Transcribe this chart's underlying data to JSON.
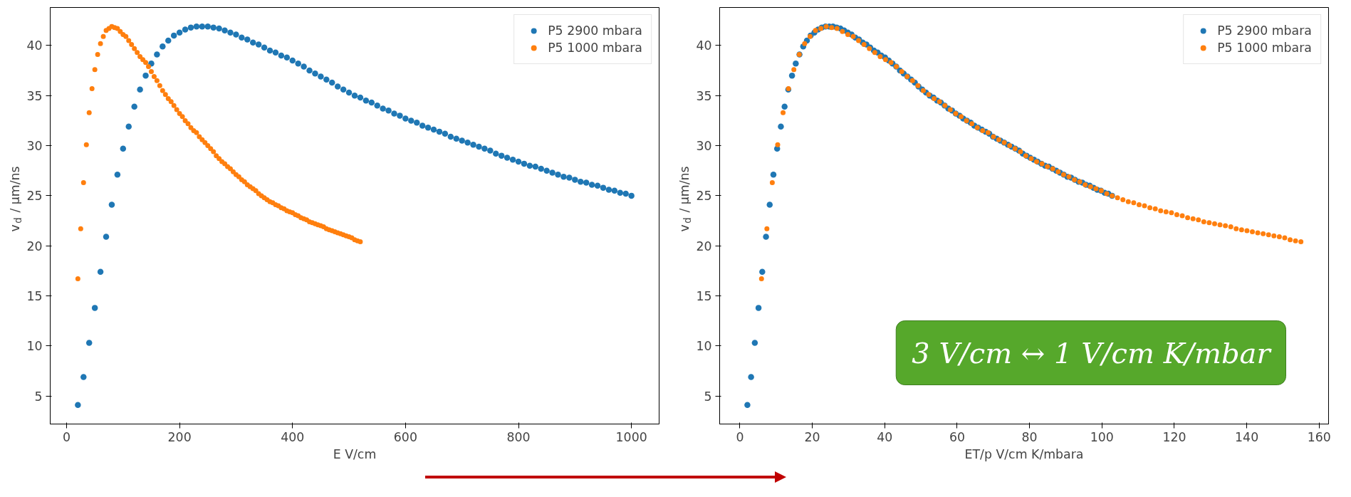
{
  "chart_data": [
    {
      "type": "scatter",
      "xlabel": "E V/cm",
      "ylabel": "v$_{d}$ / µm/ns",
      "xlim": [
        -29,
        1049
      ],
      "ylim": [
        2.2,
        43.8
      ],
      "xticks": [
        0,
        200,
        400,
        600,
        800,
        1000
      ],
      "yticks": [
        5,
        10,
        15,
        20,
        25,
        30,
        35,
        40
      ],
      "legend": "top right",
      "marker": "circle",
      "series": [
        {
          "name": "P5 2900 mbara",
          "color": "#1f77b4",
          "x": [
            20,
            30,
            40,
            50,
            60,
            70,
            80,
            90,
            100,
            110,
            120,
            130,
            140,
            150,
            160,
            170,
            180,
            190,
            200,
            210,
            220,
            230,
            240,
            250,
            260,
            270,
            280,
            290,
            300,
            310,
            320,
            330,
            340,
            350,
            360,
            370,
            380,
            390,
            400,
            410,
            420,
            430,
            440,
            450,
            460,
            470,
            480,
            490,
            500,
            510,
            520,
            530,
            540,
            550,
            560,
            570,
            580,
            590,
            600,
            610,
            620,
            630,
            640,
            650,
            660,
            670,
            680,
            690,
            700,
            710,
            720,
            730,
            740,
            750,
            760,
            770,
            780,
            790,
            800,
            810,
            820,
            830,
            840,
            850,
            860,
            870,
            880,
            890,
            900,
            910,
            920,
            930,
            940,
            950,
            960,
            970,
            980,
            990,
            1000
          ],
          "values": [
            4.1,
            6.9,
            10.3,
            13.8,
            17.4,
            20.9,
            24.1,
            27.1,
            29.7,
            31.9,
            33.9,
            35.6,
            37.0,
            38.2,
            39.1,
            39.9,
            40.5,
            41.0,
            41.3,
            41.6,
            41.8,
            41.9,
            41.9,
            41.9,
            41.8,
            41.7,
            41.5,
            41.3,
            41.1,
            40.8,
            40.6,
            40.3,
            40.1,
            39.8,
            39.5,
            39.3,
            39.0,
            38.8,
            38.5,
            38.2,
            37.9,
            37.5,
            37.2,
            36.9,
            36.6,
            36.3,
            35.9,
            35.6,
            35.3,
            35.0,
            34.8,
            34.5,
            34.3,
            34.0,
            33.7,
            33.5,
            33.2,
            33.0,
            32.7,
            32.5,
            32.3,
            32.0,
            31.8,
            31.6,
            31.4,
            31.2,
            30.9,
            30.7,
            30.5,
            30.3,
            30.1,
            29.9,
            29.7,
            29.5,
            29.2,
            29.0,
            28.8,
            28.6,
            28.4,
            28.2,
            28.0,
            27.9,
            27.7,
            27.5,
            27.3,
            27.1,
            26.9,
            26.8,
            26.6,
            26.4,
            26.3,
            26.1,
            26.0,
            25.8,
            25.6,
            25.5,
            25.3,
            25.2,
            25.0
          ]
        },
        {
          "name": "P5 1000 mbara",
          "color": "#ff7f0e",
          "x": [
            20,
            25,
            30,
            35,
            40,
            45,
            50,
            55,
            60,
            65,
            70,
            75,
            80,
            85,
            90,
            95,
            100,
            105,
            110,
            115,
            120,
            125,
            130,
            135,
            140,
            145,
            150,
            155,
            160,
            165,
            170,
            175,
            180,
            185,
            190,
            195,
            200,
            205,
            210,
            215,
            220,
            225,
            230,
            235,
            240,
            245,
            250,
            255,
            260,
            265,
            270,
            275,
            280,
            285,
            290,
            295,
            300,
            305,
            310,
            315,
            320,
            325,
            330,
            335,
            340,
            345,
            350,
            355,
            360,
            365,
            370,
            375,
            380,
            385,
            390,
            395,
            400,
            405,
            410,
            415,
            420,
            425,
            430,
            435,
            440,
            445,
            450,
            455,
            460,
            465,
            470,
            475,
            480,
            485,
            490,
            495,
            500,
            505,
            510,
            515,
            520
          ],
          "values": [
            16.7,
            21.7,
            26.3,
            30.1,
            33.3,
            35.7,
            37.6,
            39.1,
            40.2,
            40.9,
            41.5,
            41.7,
            41.9,
            41.8,
            41.7,
            41.4,
            41.1,
            40.9,
            40.5,
            40.1,
            39.7,
            39.3,
            38.9,
            38.6,
            38.3,
            37.9,
            37.4,
            36.9,
            36.5,
            36.0,
            35.5,
            35.1,
            34.7,
            34.4,
            34.0,
            33.6,
            33.2,
            32.9,
            32.5,
            32.2,
            31.8,
            31.5,
            31.3,
            30.9,
            30.6,
            30.3,
            30.0,
            29.7,
            29.4,
            29.0,
            28.7,
            28.4,
            28.2,
            27.9,
            27.7,
            27.4,
            27.1,
            26.9,
            26.6,
            26.4,
            26.1,
            25.9,
            25.7,
            25.5,
            25.2,
            25.0,
            24.8,
            24.6,
            24.4,
            24.3,
            24.1,
            24.0,
            23.8,
            23.7,
            23.5,
            23.4,
            23.3,
            23.1,
            23.0,
            22.8,
            22.7,
            22.6,
            22.4,
            22.3,
            22.2,
            22.1,
            22.0,
            21.9,
            21.7,
            21.6,
            21.5,
            21.4,
            21.3,
            21.2,
            21.1,
            21.0,
            20.9,
            20.8,
            20.6,
            20.5,
            20.4
          ]
        }
      ]
    },
    {
      "type": "scatter",
      "xlabel": "ET/p V/cm K/mbara",
      "ylabel": "v$_{d}$ / µm/ns",
      "xlim": [
        -5.6,
        162.6
      ],
      "ylim": [
        2.2,
        43.8
      ],
      "xticks": [
        0,
        20,
        40,
        60,
        80,
        100,
        120,
        140,
        160
      ],
      "yticks": [
        5,
        10,
        15,
        20,
        25,
        30,
        35,
        40
      ],
      "legend": "top right",
      "marker": "circle",
      "annotations": [
        "3 V/cm ↔ 1 V/cm K/mbar"
      ],
      "series": [
        {
          "name": "P5 2900 mbara",
          "color": "#1f77b4",
          "x": [
            2.06,
            3.08,
            4.11,
            5.14,
            6.17,
            7.2,
            8.22,
            9.25,
            10.28,
            11.31,
            12.34,
            13.36,
            14.39,
            15.42,
            16.45,
            17.48,
            18.5,
            19.53,
            20.56,
            21.59,
            22.62,
            23.64,
            24.67,
            25.7,
            26.73,
            27.76,
            28.78,
            29.81,
            30.84,
            31.87,
            32.9,
            33.92,
            34.95,
            35.98,
            37.01,
            38.04,
            39.06,
            40.09,
            41.12,
            42.15,
            43.18,
            44.2,
            45.23,
            46.26,
            47.29,
            48.32,
            49.34,
            50.37,
            51.4,
            52.43,
            53.46,
            54.48,
            55.51,
            56.54,
            57.57,
            58.6,
            59.62,
            60.65,
            61.68,
            62.71,
            63.74,
            64.76,
            65.79,
            66.82,
            67.85,
            68.88,
            69.9,
            70.93,
            71.96,
            72.99,
            74.02,
            75.04,
            76.07,
            77.1,
            78.13,
            79.16,
            80.18,
            81.21,
            82.24,
            83.27,
            84.3,
            85.32,
            86.35,
            87.38,
            88.41,
            89.44,
            90.46,
            91.49,
            92.52,
            93.55,
            94.58,
            95.6,
            96.63,
            97.66,
            98.69,
            99.72,
            100.74,
            101.77,
            102.8
          ],
          "values": [
            4.1,
            6.9,
            10.3,
            13.8,
            17.4,
            20.9,
            24.1,
            27.1,
            29.7,
            31.9,
            33.9,
            35.6,
            37.0,
            38.2,
            39.1,
            39.9,
            40.5,
            41.0,
            41.3,
            41.6,
            41.8,
            41.9,
            41.9,
            41.9,
            41.8,
            41.7,
            41.5,
            41.3,
            41.1,
            40.8,
            40.6,
            40.3,
            40.1,
            39.8,
            39.5,
            39.3,
            39.0,
            38.8,
            38.5,
            38.2,
            37.9,
            37.5,
            37.2,
            36.9,
            36.6,
            36.3,
            35.9,
            35.6,
            35.3,
            35.0,
            34.8,
            34.5,
            34.3,
            34.0,
            33.7,
            33.5,
            33.2,
            33.0,
            32.7,
            32.5,
            32.3,
            32.0,
            31.8,
            31.6,
            31.4,
            31.2,
            30.9,
            30.7,
            30.5,
            30.3,
            30.1,
            29.9,
            29.7,
            29.5,
            29.2,
            29.0,
            28.8,
            28.6,
            28.4,
            28.2,
            28.0,
            27.9,
            27.7,
            27.5,
            27.3,
            27.1,
            26.9,
            26.8,
            26.6,
            26.4,
            26.3,
            26.1,
            26.0,
            25.8,
            25.6,
            25.5,
            25.3,
            25.2,
            25.0
          ]
        },
        {
          "name": "P5 1000 mbara",
          "color": "#ff7f0e",
          "x": [
            5.96,
            7.45,
            8.94,
            10.43,
            11.92,
            13.41,
            14.9,
            16.39,
            17.88,
            19.37,
            20.86,
            22.35,
            23.84,
            25.33,
            26.82,
            28.31,
            29.8,
            31.29,
            32.78,
            34.27,
            35.76,
            37.25,
            38.74,
            40.23,
            41.72,
            43.21,
            44.7,
            46.19,
            47.68,
            49.17,
            50.66,
            52.15,
            53.64,
            55.13,
            56.62,
            58.11,
            59.6,
            61.09,
            62.58,
            64.07,
            65.56,
            67.05,
            68.54,
            70.03,
            71.52,
            73.01,
            74.5,
            75.99,
            77.48,
            78.97,
            80.46,
            81.95,
            83.44,
            84.93,
            86.42,
            87.91,
            89.4,
            90.89,
            92.38,
            93.87,
            95.36,
            96.85,
            98.34,
            99.83,
            101.32,
            102.81,
            104.3,
            105.79,
            107.28,
            108.77,
            110.26,
            111.75,
            113.24,
            114.73,
            116.22,
            117.71,
            119.2,
            120.69,
            122.18,
            123.67,
            125.16,
            126.65,
            128.14,
            129.63,
            131.12,
            132.61,
            134.1,
            135.59,
            137.08,
            138.57,
            140.06,
            141.55,
            143.04,
            144.53,
            146.02,
            147.51,
            149.0,
            150.49,
            151.98,
            153.47,
            154.96
          ],
          "values": [
            16.7,
            21.7,
            26.3,
            30.1,
            33.3,
            35.7,
            37.6,
            39.1,
            40.2,
            40.9,
            41.5,
            41.7,
            41.9,
            41.8,
            41.7,
            41.4,
            41.1,
            40.9,
            40.5,
            40.1,
            39.7,
            39.3,
            38.9,
            38.6,
            38.3,
            37.9,
            37.4,
            36.9,
            36.5,
            36.0,
            35.5,
            35.1,
            34.7,
            34.4,
            34.0,
            33.6,
            33.2,
            32.9,
            32.5,
            32.2,
            31.8,
            31.5,
            31.3,
            30.9,
            30.6,
            30.3,
            30.0,
            29.7,
            29.4,
            29.0,
            28.7,
            28.4,
            28.2,
            27.9,
            27.7,
            27.4,
            27.1,
            26.9,
            26.6,
            26.4,
            26.1,
            25.9,
            25.7,
            25.5,
            25.2,
            25.0,
            24.8,
            24.6,
            24.4,
            24.3,
            24.1,
            24.0,
            23.8,
            23.7,
            23.5,
            23.4,
            23.3,
            23.1,
            23.0,
            22.8,
            22.7,
            22.6,
            22.4,
            22.3,
            22.2,
            22.1,
            22.0,
            21.9,
            21.7,
            21.6,
            21.5,
            21.4,
            21.3,
            21.2,
            21.1,
            21.0,
            20.9,
            20.8,
            20.6,
            20.5,
            20.4
          ]
        }
      ]
    }
  ]
}
